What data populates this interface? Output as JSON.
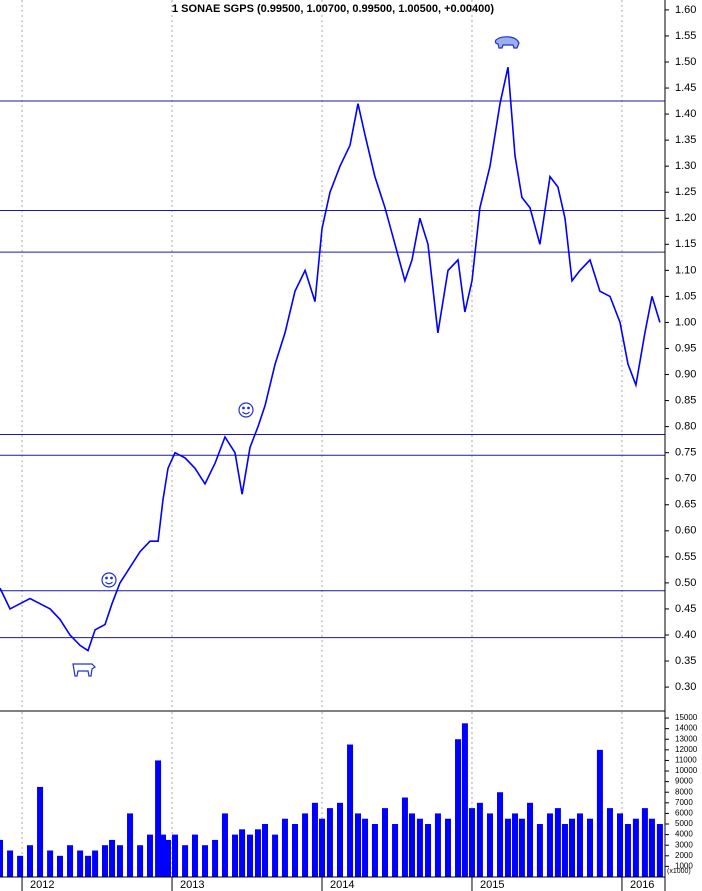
{
  "chart_data": [
    {
      "type": "line",
      "title": "1 SONAE SGPS (0.99500, 1.00700, 0.99500, 1.00500, +0.00400)",
      "x": [
        2011.853,
        2011.92,
        2011.987,
        2012.053,
        2012.12,
        2012.187,
        2012.253,
        2012.32,
        2012.387,
        2012.44,
        2012.487,
        2012.553,
        2012.6,
        2012.653,
        2012.72,
        2012.787,
        2012.853,
        2012.907,
        2012.94,
        2012.973,
        2013.02,
        2013.087,
        2013.153,
        2013.22,
        2013.287,
        2013.353,
        2013.42,
        2013.467,
        2013.52,
        2013.573,
        2013.62,
        2013.687,
        2013.753,
        2013.82,
        2013.887,
        2013.953,
        2014.0,
        2014.053,
        2014.12,
        2014.187,
        2014.24,
        2014.287,
        2014.353,
        2014.42,
        2014.487,
        2014.553,
        2014.6,
        2014.653,
        2014.707,
        2014.773,
        2014.84,
        2014.907,
        2014.953,
        2015.0,
        2015.053,
        2015.12,
        2015.187,
        2015.24,
        2015.287,
        2015.333,
        2015.387,
        2015.453,
        2015.52,
        2015.573,
        2015.62,
        2015.667,
        2015.72,
        2015.787,
        2015.853,
        2015.92,
        2015.987,
        2016.04,
        2016.093,
        2016.153,
        2016.2,
        2016.253
      ],
      "series": [
        {
          "color": "#0000ff",
          "values": [
            0.49,
            0.45,
            0.46,
            0.47,
            0.46,
            0.45,
            0.43,
            0.4,
            0.38,
            0.37,
            0.41,
            0.42,
            0.46,
            0.5,
            0.53,
            0.56,
            0.58,
            0.58,
            0.66,
            0.72,
            0.75,
            0.74,
            0.72,
            0.69,
            0.73,
            0.78,
            0.75,
            0.67,
            0.76,
            0.8,
            0.84,
            0.92,
            0.98,
            1.06,
            1.1,
            1.04,
            1.18,
            1.25,
            1.3,
            1.34,
            1.42,
            1.36,
            1.28,
            1.22,
            1.15,
            1.08,
            1.12,
            1.2,
            1.15,
            0.98,
            1.1,
            1.12,
            1.02,
            1.08,
            1.22,
            1.3,
            1.42,
            1.49,
            1.32,
            1.24,
            1.22,
            1.15,
            1.28,
            1.26,
            1.2,
            1.08,
            1.1,
            1.12,
            1.06,
            1.05,
            1.0,
            0.92,
            0.88,
            0.98,
            1.05,
            1.0
          ]
        }
      ],
      "hlines": [
        1.425,
        1.215,
        1.135,
        0.785,
        0.745,
        0.485,
        0.395
      ],
      "hline_color": "#1a1aa8",
      "xlim": [
        2011.853,
        2016.287
      ],
      "xticks": [
        2012,
        2013,
        2014,
        2015,
        2016
      ],
      "ylim": [
        0.256,
        1.619
      ],
      "yticks": [
        {
          "value": 0.3,
          "label": "0.30"
        },
        {
          "value": 0.35,
          "label": "0.35"
        },
        {
          "value": 0.4,
          "label": "0.40"
        },
        {
          "value": 0.45,
          "label": "0.45"
        },
        {
          "value": 0.5,
          "label": "0.50"
        },
        {
          "value": 0.55,
          "label": "0.55"
        },
        {
          "value": 0.6,
          "label": "0.60"
        },
        {
          "value": 0.65,
          "label": "0.65"
        },
        {
          "value": 0.7,
          "label": "0.70"
        },
        {
          "value": 0.75,
          "label": "0.75"
        },
        {
          "value": 0.8,
          "label": "0.80"
        },
        {
          "value": 0.85,
          "label": "0.85"
        },
        {
          "value": 0.9,
          "label": "0.90"
        },
        {
          "value": 0.95,
          "label": "0.95"
        },
        {
          "value": 1.0,
          "label": "1.00"
        },
        {
          "value": 1.05,
          "label": "1.05"
        },
        {
          "value": 1.1,
          "label": "1.10"
        },
        {
          "value": 1.15,
          "label": "1.15"
        },
        {
          "value": 1.2,
          "label": "1.20"
        },
        {
          "value": 1.25,
          "label": "1.25"
        },
        {
          "value": 1.3,
          "label": "1.30"
        },
        {
          "value": 1.35,
          "label": "1.35"
        },
        {
          "value": 1.4,
          "label": "1.40"
        },
        {
          "value": 1.45,
          "label": "1.45"
        },
        {
          "value": 1.5,
          "label": "1.50"
        },
        {
          "value": 1.55,
          "label": "1.55"
        },
        {
          "value": 1.6,
          "label": "1.60"
        }
      ],
      "grid": true
    },
    {
      "type": "bar",
      "x": [
        2011.853,
        2011.92,
        2011.987,
        2012.053,
        2012.12,
        2012.187,
        2012.253,
        2012.32,
        2012.387,
        2012.44,
        2012.487,
        2012.553,
        2012.6,
        2012.653,
        2012.72,
        2012.787,
        2012.853,
        2012.907,
        2012.94,
        2012.973,
        2013.02,
        2013.087,
        2013.153,
        2013.22,
        2013.287,
        2013.353,
        2013.42,
        2013.467,
        2013.52,
        2013.573,
        2013.62,
        2013.687,
        2013.753,
        2013.82,
        2013.887,
        2013.953,
        2014.0,
        2014.053,
        2014.12,
        2014.187,
        2014.24,
        2014.287,
        2014.353,
        2014.42,
        2014.487,
        2014.553,
        2014.6,
        2014.653,
        2014.707,
        2014.773,
        2014.84,
        2014.907,
        2014.953,
        2015.0,
        2015.053,
        2015.12,
        2015.187,
        2015.24,
        2015.287,
        2015.333,
        2015.387,
        2015.453,
        2015.52,
        2015.573,
        2015.62,
        2015.667,
        2015.72,
        2015.787,
        2015.853,
        2015.92,
        2015.987,
        2016.04,
        2016.093,
        2016.153,
        2016.2,
        2016.253
      ],
      "values": [
        3500,
        2500,
        2000,
        3000,
        8500,
        2500,
        2000,
        3000,
        2500,
        2000,
        2500,
        3000,
        3500,
        3000,
        6000,
        3000,
        4000,
        11000,
        4000,
        3500,
        4000,
        3000,
        4000,
        3000,
        3500,
        6000,
        4000,
        4500,
        4000,
        4500,
        5000,
        4000,
        5500,
        5000,
        6000,
        7000,
        5500,
        6500,
        7000,
        12500,
        6000,
        5500,
        5000,
        6500,
        5000,
        7500,
        6000,
        5500,
        5000,
        6000,
        5500,
        13000,
        14500,
        6500,
        7000,
        6000,
        8000,
        5500,
        6000,
        5500,
        7000,
        5000,
        6000,
        6500,
        5000,
        5500,
        6000,
        5500,
        12000,
        6500,
        6000,
        5000,
        5500,
        6500,
        5500,
        5000
      ],
      "color": "#0000ff",
      "y_unit_label": "(x1000)",
      "xlim": [
        2011.853,
        2016.287
      ],
      "xticks": [
        2012,
        2013,
        2014,
        2015,
        2016
      ],
      "ylim": [
        0,
        15570
      ],
      "yticks": [
        1000,
        2000,
        3000,
        4000,
        5000,
        6000,
        7000,
        8000,
        9000,
        10000,
        11000,
        12000,
        13000,
        14000,
        15000
      ],
      "grid": true
    }
  ]
}
